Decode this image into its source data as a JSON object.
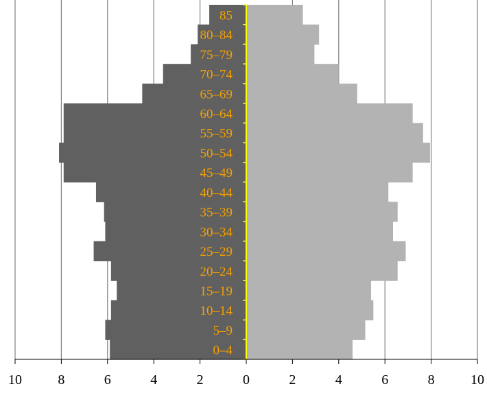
{
  "chart_data": {
    "type": "bar",
    "orientation": "horizontal",
    "variant": "population-pyramid",
    "title": "",
    "xlabel": "",
    "ylabel": "",
    "xlim": [
      -10,
      10
    ],
    "x_ticks": [
      -10,
      -8,
      -6,
      -4,
      -2,
      0,
      2,
      4,
      6,
      8,
      10
    ],
    "x_tick_labels": [
      "10",
      "8",
      "6",
      "4",
      "2",
      "0",
      "2",
      "4",
      "6",
      "8",
      "10"
    ],
    "grid": "vertical",
    "categories": [
      "0–4",
      "5–9",
      "10–14",
      "15–19",
      "20–24",
      "25–29",
      "30–34",
      "35–39",
      "40–44",
      "45–49",
      "50–54",
      "55–59",
      "60–64",
      "65–69",
      "70–74",
      "75–79",
      "80–84",
      "85"
    ],
    "series": [
      {
        "side": "left",
        "color": "#606060",
        "values": [
          5.9,
          6.1,
          5.85,
          5.6,
          5.85,
          6.6,
          6.1,
          6.15,
          6.5,
          7.9,
          8.1,
          7.9,
          7.9,
          4.5,
          3.6,
          2.4,
          2.1,
          1.6
        ]
      },
      {
        "side": "right",
        "color": "#b3b3b3",
        "values": [
          4.6,
          5.15,
          5.5,
          5.4,
          6.55,
          6.9,
          6.35,
          6.55,
          6.15,
          7.2,
          7.95,
          7.65,
          7.2,
          4.8,
          4.0,
          2.95,
          3.15,
          2.45
        ]
      }
    ],
    "colors": {
      "label": "#f5a000",
      "center_line": "#ffff00",
      "grid": "#7f7f7f",
      "axis": "#000000"
    }
  }
}
